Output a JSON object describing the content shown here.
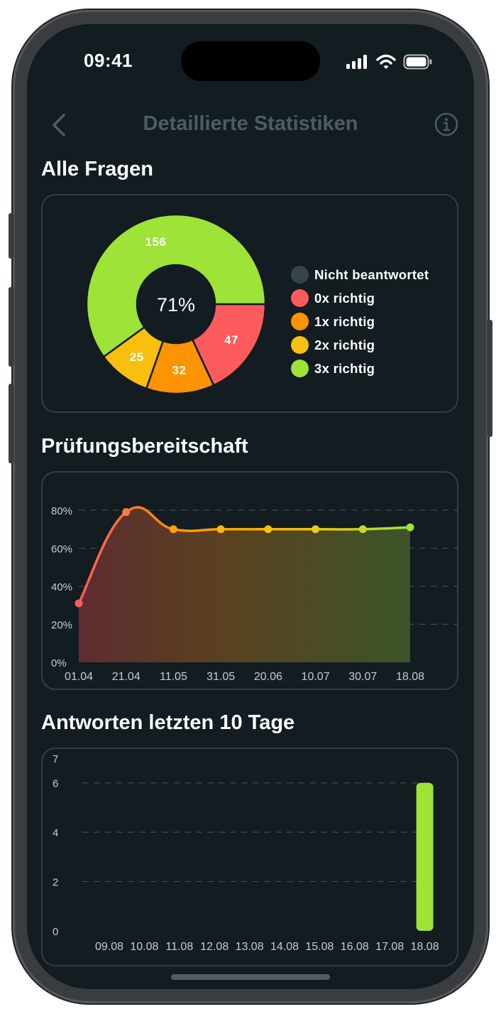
{
  "status_bar": {
    "time": "09:41"
  },
  "nav": {
    "title": "Detaillierte Statistiken",
    "back_icon": "chevron-left-icon",
    "info_icon": "info-circle-icon"
  },
  "colors": {
    "background": "#121c21",
    "not_answered": "#36454d",
    "zero_correct": "#fe5b5d",
    "one_correct": "#fe9304",
    "two_correct": "#f8c00d",
    "three_correct": "#9ee337"
  },
  "sections": {
    "all_questions": "Alle Fragen",
    "readiness": "Prüfungsbereitschaft",
    "last_days": "Antworten letzten 10 Tage"
  },
  "chart_data": [
    {
      "type": "pie",
      "center_label": "71%",
      "slices": [
        {
          "label": "Nicht beantwortet",
          "value": 0,
          "color": "#36454d"
        },
        {
          "label": "0x richtig",
          "value": 47,
          "color": "#fe5b5d"
        },
        {
          "label": "1x richtig",
          "value": 32,
          "color": "#fe9304"
        },
        {
          "label": "2x richtig",
          "value": 25,
          "color": "#f8c00d"
        },
        {
          "label": "3x richtig",
          "value": 156,
          "color": "#9ee337"
        }
      ],
      "legend_placement": "right"
    },
    {
      "type": "area",
      "x": [
        "01.04",
        "21.04",
        "11.05",
        "31.05",
        "20.06",
        "10.07",
        "30.07",
        "18.08"
      ],
      "values": [
        31,
        79,
        70,
        70,
        70,
        70,
        70,
        71
      ],
      "yticks": [
        "0%",
        "20%",
        "40%",
        "60%",
        "80%"
      ],
      "ylim": [
        0,
        80
      ],
      "grid": true
    },
    {
      "type": "bar",
      "categories": [
        "09.08",
        "10.08",
        "11.08",
        "12.08",
        "13.08",
        "14.08",
        "15.08",
        "16.08",
        "17.08",
        "18.08"
      ],
      "values": [
        0,
        0,
        0,
        0,
        0,
        0,
        0,
        0,
        0,
        6
      ],
      "yticks": [
        "0",
        "2",
        "4",
        "6",
        "7"
      ],
      "ylim": [
        0,
        7
      ],
      "grid": true,
      "color": "#9ee337"
    }
  ]
}
